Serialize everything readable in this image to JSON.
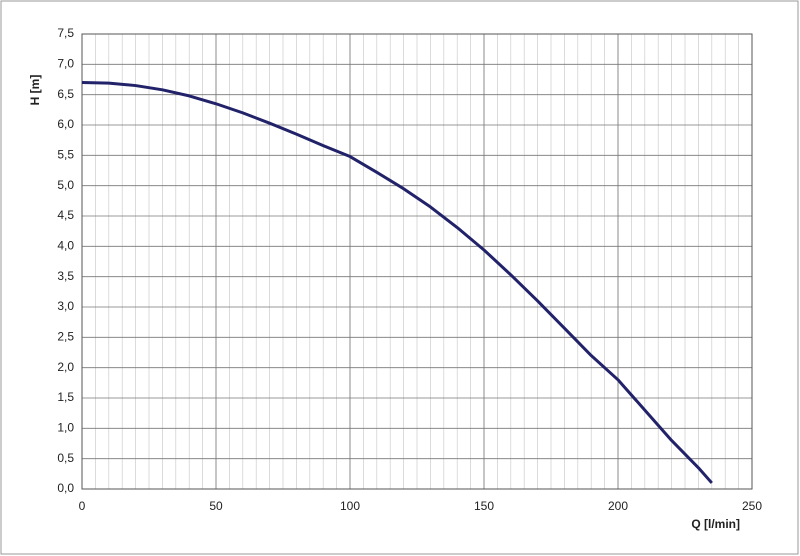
{
  "chart_data": {
    "type": "line",
    "x_label": "Q [l/min]",
    "y_label": "H [m]",
    "x": [
      0,
      10,
      20,
      30,
      40,
      50,
      60,
      70,
      80,
      90,
      100,
      110,
      120,
      130,
      140,
      150,
      160,
      170,
      180,
      190,
      200,
      210,
      220,
      230,
      235
    ],
    "series": [
      {
        "color": "#22226a",
        "values": [
          6.7,
          6.69,
          6.65,
          6.58,
          6.48,
          6.35,
          6.2,
          6.03,
          5.85,
          5.66,
          5.48,
          5.22,
          4.95,
          4.65,
          4.31,
          3.94,
          3.53,
          3.1,
          2.65,
          2.2,
          1.8,
          1.3,
          0.8,
          0.35,
          0.1
        ]
      }
    ],
    "xlim": [
      0,
      250
    ],
    "xticks": [
      0,
      50,
      100,
      150,
      200,
      250
    ],
    "xminorticks": [
      0,
      5,
      10,
      15,
      20,
      25,
      30,
      35,
      40,
      45,
      50,
      55,
      60,
      65,
      70,
      75,
      80,
      85,
      90,
      95,
      100,
      105,
      110,
      115,
      120,
      125,
      130,
      135,
      140,
      145,
      150,
      155,
      160,
      165,
      170,
      175,
      180,
      185,
      190,
      195,
      200,
      205,
      210,
      215,
      220,
      225,
      230,
      235,
      240,
      245,
      250
    ],
    "ylim": [
      0,
      7.5
    ],
    "yticks": [
      {
        "value": 0,
        "label": "0,0"
      },
      {
        "value": 0.5,
        "label": "0,5"
      },
      {
        "value": 1,
        "label": "1,0"
      },
      {
        "value": 1.5,
        "label": "1,5"
      },
      {
        "value": 2,
        "label": "2,0"
      },
      {
        "value": 2.5,
        "label": "2,5"
      },
      {
        "value": 3,
        "label": "3,0"
      },
      {
        "value": 3.5,
        "label": "3,5"
      },
      {
        "value": 4,
        "label": "4,0"
      },
      {
        "value": 4.5,
        "label": "4,5"
      },
      {
        "value": 5,
        "label": "5,0"
      },
      {
        "value": 5.5,
        "label": "5,5"
      },
      {
        "value": 6,
        "label": "6,0"
      },
      {
        "value": 6.5,
        "label": "6,5"
      },
      {
        "value": 7,
        "label": "7,0"
      },
      {
        "value": 7.5,
        "label": "7,5"
      }
    ],
    "grid": true
  }
}
